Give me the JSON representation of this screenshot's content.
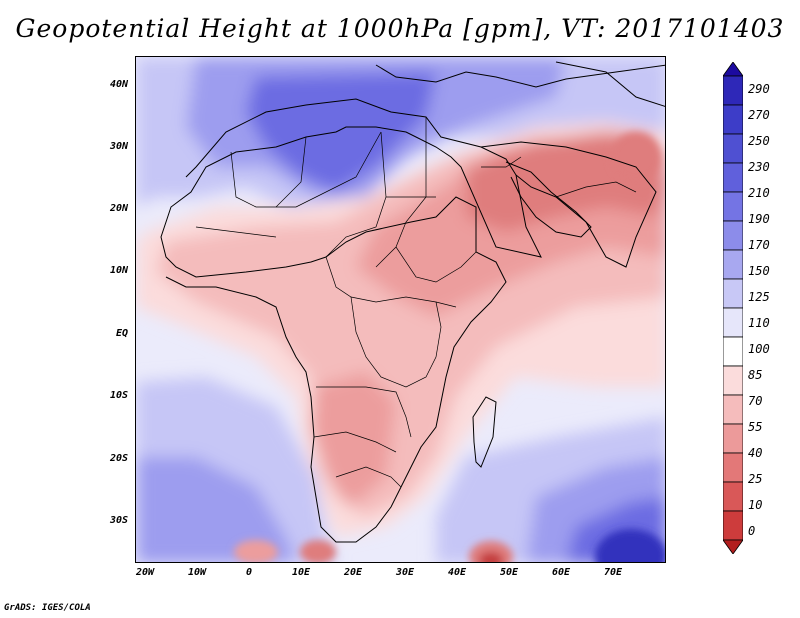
{
  "title": "Geopotential Height at 1000hPa [gpm], VT: 2017101403",
  "credit": "GrADS: IGES/COLA",
  "y_axis_labels": [
    "40N",
    "30N",
    "20N",
    "10N",
    "EQ",
    "10S",
    "20S",
    "30S"
  ],
  "x_axis_labels": [
    "20W",
    "10W",
    "0",
    "10E",
    "20E",
    "30E",
    "40E",
    "50E",
    "60E",
    "70E"
  ],
  "colorbar": {
    "levels": [
      "290",
      "270",
      "250",
      "230",
      "210",
      "190",
      "170",
      "150",
      "125",
      "110",
      "100",
      "85",
      "70",
      "55",
      "40",
      "25",
      "10",
      "0"
    ],
    "colors": [
      "#1c0aa0",
      "#2e28b8",
      "#3d3dc8",
      "#4f50d2",
      "#6060dc",
      "#7474e4",
      "#8c8cea",
      "#a8a8f0",
      "#c8c8f6",
      "#e6e6fa",
      "#ffffff",
      "#fbdcdc",
      "#f5bcbc",
      "#ec9a9a",
      "#e37878",
      "#d95858",
      "#cd3c3c",
      "#b21e1e"
    ]
  },
  "map_colors": {
    "ocean": "#ebebfb",
    "blue_light": "#c6c6f6",
    "blue_mid": "#9d9def",
    "blue_deep": "#6c6ce2",
    "blue_darkest": "#3131bd",
    "pink_light": "#fbdcdc",
    "pink_mid": "#f4bcbc",
    "red_mid": "#ec9d9d",
    "red_dark": "#df7d7d",
    "red_darkest": "#c43c3c"
  }
}
